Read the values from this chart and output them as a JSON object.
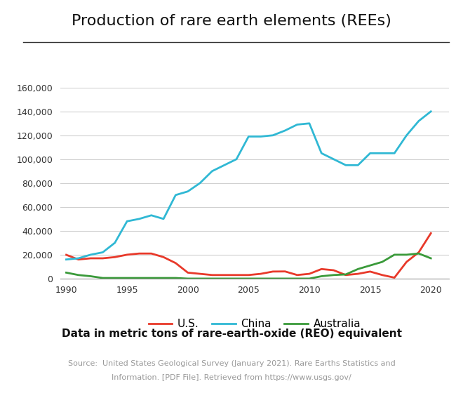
{
  "title": "Production of rare earth elements (REEs)",
  "subtitle": "Data in metric tons of rare-earth-oxide (REO) equivalent",
  "source_line1": "Source:  United States Geological Survey (January 2021). Rare Earths Statistics and",
  "source_line2": "Information. [PDF File]. Retrieved from https://www.usgs.gov/",
  "years": [
    1990,
    1991,
    1992,
    1993,
    1994,
    1995,
    1996,
    1997,
    1998,
    1999,
    2000,
    2001,
    2002,
    2003,
    2004,
    2005,
    2006,
    2007,
    2008,
    2009,
    2010,
    2011,
    2012,
    2013,
    2014,
    2015,
    2016,
    2017,
    2018,
    2019,
    2020
  ],
  "us": [
    19900,
    16000,
    17000,
    17000,
    18000,
    20000,
    21000,
    21000,
    18000,
    13000,
    5000,
    4000,
    3000,
    3000,
    3000,
    3000,
    4000,
    5900,
    6000,
    3000,
    4000,
    8000,
    7000,
    3000,
    4000,
    5900,
    3000,
    800,
    14000,
    22000,
    38000
  ],
  "china": [
    16000,
    17000,
    20000,
    22000,
    30000,
    48000,
    50000,
    53000,
    50000,
    70000,
    73000,
    80000,
    90000,
    95000,
    100000,
    119000,
    119000,
    120000,
    124000,
    129000,
    130000,
    105000,
    100000,
    95000,
    95000,
    105000,
    105000,
    105000,
    120000,
    132000,
    140000
  ],
  "australia": [
    5000,
    3000,
    2000,
    500,
    500,
    500,
    500,
    500,
    500,
    500,
    0,
    0,
    0,
    0,
    0,
    0,
    0,
    0,
    0,
    0,
    0,
    2000,
    3000,
    3500,
    8000,
    11000,
    14000,
    20000,
    20000,
    21000,
    17000
  ],
  "us_color": "#e8392a",
  "china_color": "#30b8d4",
  "australia_color": "#3a9a3a",
  "ylim": [
    0,
    160000
  ],
  "yticks": [
    0,
    20000,
    40000,
    60000,
    80000,
    100000,
    120000,
    140000,
    160000
  ],
  "xticks": [
    1990,
    1995,
    2000,
    2005,
    2010,
    2015,
    2020
  ],
  "bg_color": "#ffffff",
  "line_width": 2.0
}
